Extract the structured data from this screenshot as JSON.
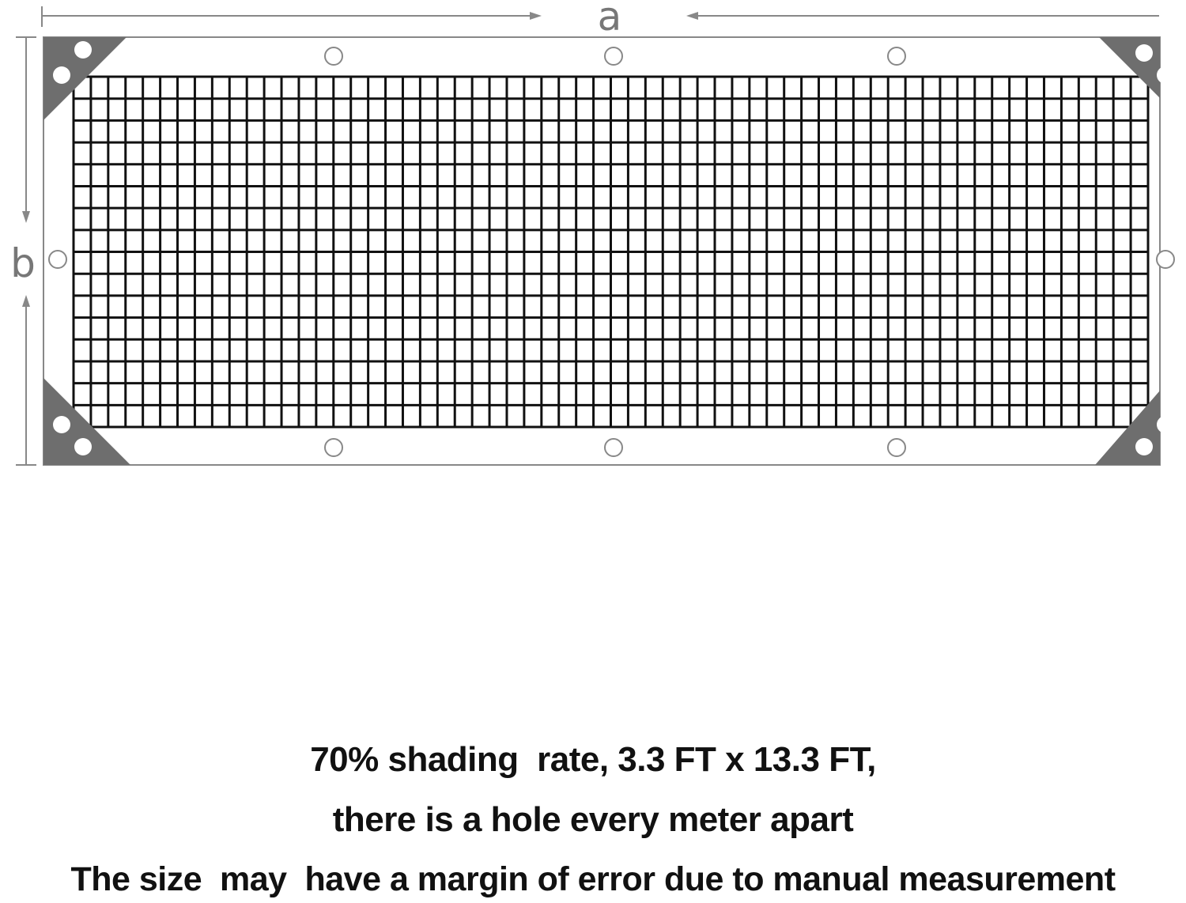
{
  "diagram": {
    "dimension_a_label": "a",
    "dimension_b_label": "b",
    "colors": {
      "frame": "#888888",
      "corner_patch": "#6e6e6e",
      "mesh": "#111111"
    },
    "icons": [
      "corner-reinforcement-icon",
      "grommet-hole-icon"
    ]
  },
  "caption": {
    "line1": "70% shading  rate, 3.3 FT x 13.3 FT,",
    "line2": "there is a hole every meter apart",
    "line3": "The size  may  have a margin of error due to manual measurement"
  }
}
